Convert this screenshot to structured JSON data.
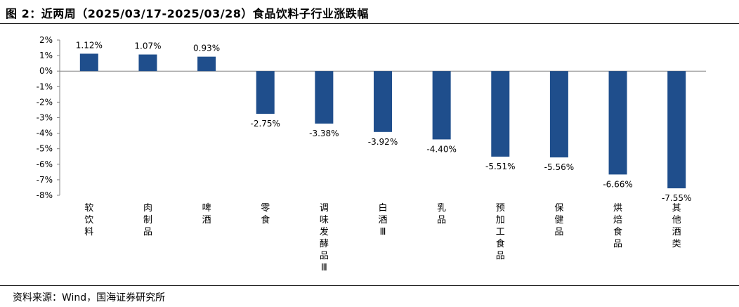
{
  "title": "图 2：近两周（2025/03/17-2025/03/28）食品饮料子行业涨跌幅",
  "source": "资料来源：Wind，国海证券研究所",
  "colors": {
    "bar": "#1f4e8c",
    "axis": "#808080"
  },
  "chart_data": {
    "type": "bar",
    "title": "",
    "xlabel": "",
    "ylabel": "",
    "ylim": [
      -8,
      2
    ],
    "yticks": [
      2,
      1,
      0,
      -1,
      -2,
      -3,
      -4,
      -5,
      -6,
      -7,
      -8
    ],
    "ytick_labels": [
      "2%",
      "1%",
      "0%",
      "-1%",
      "-2%",
      "-3%",
      "-4%",
      "-5%",
      "-6%",
      "-7%",
      "-8%"
    ],
    "categories": [
      "软饮料",
      "肉制品",
      "啤酒",
      "零食",
      "调味发酵品Ⅲ",
      "白酒Ⅲ",
      "乳品",
      "预加工食品",
      "保健品",
      "烘焙食品",
      "其他酒类"
    ],
    "values": [
      1.12,
      1.07,
      0.93,
      -2.75,
      -3.38,
      -3.92,
      -4.4,
      -5.51,
      -5.56,
      -6.66,
      -7.55
    ],
    "data_labels": [
      "1.12%",
      "1.07%",
      "0.93%",
      "-2.75%",
      "-3.38%",
      "-3.92%",
      "-4.40%",
      "-5.51%",
      "-5.56%",
      "-6.66%",
      "-7.55%"
    ],
    "grid": false,
    "legend": "none"
  }
}
